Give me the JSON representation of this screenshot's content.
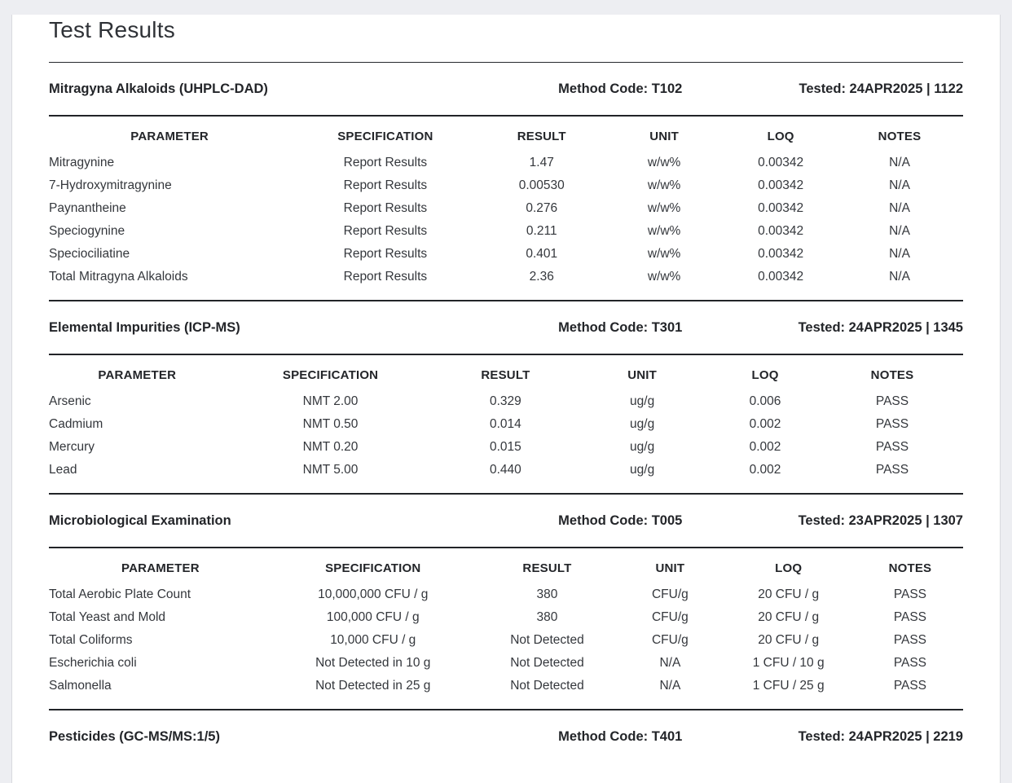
{
  "page": {
    "title": "Test Results"
  },
  "table_headers": [
    "PARAMETER",
    "SPECIFICATION",
    "RESULT",
    "UNIT",
    "LOQ",
    "NOTES"
  ],
  "colors": {
    "page_background": "#edeef2",
    "card_background": "#ffffff",
    "rule": "#222428",
    "heading_text": "#232529",
    "body_text": "#34373c"
  },
  "sections": [
    {
      "name": "Mitragyna Alkaloids (UHPLC-DAD)",
      "method_code": "Method Code: T102",
      "tested": "Tested: 24APR2025 | 1122",
      "rows": [
        [
          "Mitragynine",
          "Report Results",
          "1.47",
          "w/w%",
          "0.00342",
          "N/A"
        ],
        [
          "7-Hydroxymitragynine",
          "Report Results",
          "0.00530",
          "w/w%",
          "0.00342",
          "N/A"
        ],
        [
          "Paynantheine",
          "Report Results",
          "0.276",
          "w/w%",
          "0.00342",
          "N/A"
        ],
        [
          "Speciogynine",
          "Report Results",
          "0.211",
          "w/w%",
          "0.00342",
          "N/A"
        ],
        [
          "Speciociliatine",
          "Report Results",
          "0.401",
          "w/w%",
          "0.00342",
          "N/A"
        ],
        [
          "Total Mitragyna Alkaloids",
          "Report Results",
          "2.36",
          "w/w%",
          "0.00342",
          "N/A"
        ]
      ]
    },
    {
      "name": "Elemental Impurities (ICP-MS)",
      "method_code": "Method Code: T301",
      "tested": "Tested: 24APR2025 | 1345",
      "rows": [
        [
          "Arsenic",
          "NMT 2.00",
          "0.329",
          "ug/g",
          "0.006",
          "PASS"
        ],
        [
          "Cadmium",
          "NMT 0.50",
          "0.014",
          "ug/g",
          "0.002",
          "PASS"
        ],
        [
          "Mercury",
          "NMT 0.20",
          "0.015",
          "ug/g",
          "0.002",
          "PASS"
        ],
        [
          "Lead",
          "NMT 5.00",
          "0.440",
          "ug/g",
          "0.002",
          "PASS"
        ]
      ]
    },
    {
      "name": "Microbiological Examination",
      "method_code": "Method Code: T005",
      "tested": "Tested: 23APR2025 | 1307",
      "rows": [
        [
          "Total Aerobic Plate Count",
          "10,000,000 CFU / g",
          "380",
          "CFU/g",
          "20 CFU / g",
          "PASS"
        ],
        [
          "Total Yeast and Mold",
          "100,000 CFU / g",
          "380",
          "CFU/g",
          "20 CFU / g",
          "PASS"
        ],
        [
          "Total Coliforms",
          "10,000 CFU / g",
          "Not Detected",
          "CFU/g",
          "20 CFU / g",
          "PASS"
        ],
        [
          "Escherichia coli",
          "Not Detected in 10 g",
          "Not Detected",
          "N/A",
          "1 CFU / 10 g",
          "PASS"
        ],
        [
          "Salmonella",
          "Not Detected in 25 g",
          "Not Detected",
          "N/A",
          "1 CFU / 25 g",
          "PASS"
        ]
      ]
    },
    {
      "name": "Pesticides (GC-MS/MS:1/5)",
      "method_code": "Method Code: T401",
      "tested": "Tested: 24APR2025 | 2219",
      "rows": []
    }
  ]
}
